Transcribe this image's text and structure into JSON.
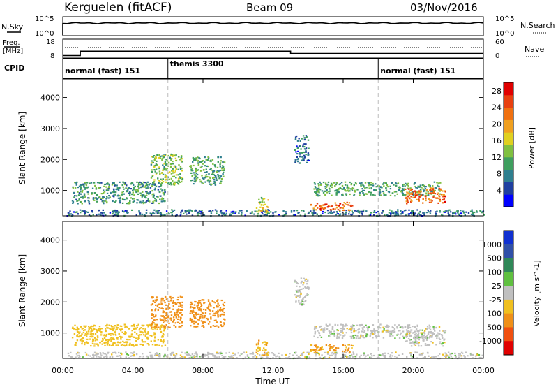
{
  "header": {
    "station": "Kerguelen (fitACF)",
    "beam": "Beam 09",
    "date": "03/Nov/2016"
  },
  "time_axis": {
    "label": "Time UT",
    "ticks": [
      "00:00",
      "04:00",
      "08:00",
      "12:00",
      "16:00",
      "20:00",
      "00:00"
    ],
    "hours": [
      0,
      4,
      8,
      12,
      16,
      20,
      24
    ]
  },
  "params": {
    "nsky_label": "N.Sky",
    "nsky_ticks": [
      "10^5",
      "10^0"
    ],
    "nsearch_label": "N.Search",
    "nsearch_ticks": [
      "10^5",
      "10^0"
    ],
    "freq_label_top": "Freq.",
    "freq_label_bottom": "[MHz]",
    "freq_ticks": [
      "18",
      "8"
    ],
    "nave_label": "Nave",
    "nave_ticks": [
      "60",
      "0"
    ],
    "cpid_label": "CPID",
    "cpid_segments": [
      {
        "start_hour": 0,
        "end_hour": 6,
        "label": "normal (fast) 151"
      },
      {
        "start_hour": 6,
        "end_hour": 18,
        "label": "themis 3300"
      },
      {
        "start_hour": 18,
        "end_hour": 24,
        "label": "normal (fast) 151"
      }
    ],
    "freq_steps": [
      {
        "start_hour": 0,
        "end_hour": 1,
        "mhz": 9.0
      },
      {
        "start_hour": 1,
        "end_hour": 13,
        "mhz": 11.5
      },
      {
        "start_hour": 13,
        "end_hour": 24,
        "mhz": 10.2
      }
    ]
  },
  "power_panel": {
    "ylabel": "Slant Range [km]",
    "yticks": [
      "4000",
      "3000",
      "2000",
      "1000"
    ],
    "colorbar_label": "Power [dB]",
    "colorbar_ticks": [
      "28",
      "24",
      "20",
      "16",
      "12",
      "8",
      "4"
    ],
    "colors": [
      "#0000ff",
      "#1f3fa0",
      "#2f7f8f",
      "#3f9f5f",
      "#80c040",
      "#e0d020",
      "#f0a020",
      "#f07010",
      "#e84010",
      "#e00000"
    ]
  },
  "velocity_panel": {
    "ylabel": "Slant Range [km]",
    "yticks": [
      "4000",
      "3000",
      "2000",
      "1000"
    ],
    "colorbar_label": "Velocity [m s^-1]",
    "colorbar_ticks": [
      "1000",
      "500",
      "100",
      "25",
      "-25",
      "-100",
      "-500",
      "-1000"
    ],
    "colors": [
      "#1030d0",
      "#3050a8",
      "#308858",
      "#60c040",
      "#c0c0c0",
      "#f0c020",
      "#f09018",
      "#f05010",
      "#e00000"
    ]
  },
  "chart_data": {
    "type": "heatmap",
    "x_unit": "hours UT",
    "xlim": [
      0,
      24
    ],
    "y_unit": "km",
    "ylim": [
      180,
      4600
    ],
    "echo_regions": [
      {
        "t0": 0.2,
        "t1": 24,
        "r0": 200,
        "r1": 400,
        "power_db": 6,
        "velocity": 0
      },
      {
        "t0": 0.5,
        "t1": 5.8,
        "r0": 600,
        "r1": 1300,
        "power_db": 9,
        "velocity": -60
      },
      {
        "t0": 5.0,
        "t1": 6.8,
        "r0": 1200,
        "r1": 2200,
        "power_db": 13,
        "velocity": -250
      },
      {
        "t0": 7.2,
        "t1": 9.2,
        "r0": 1200,
        "r1": 2100,
        "power_db": 10,
        "velocity": -150
      },
      {
        "t0": 11.0,
        "t1": 11.7,
        "r0": 300,
        "r1": 800,
        "power_db": 16,
        "velocity": -80
      },
      {
        "t0": 13.2,
        "t1": 14.0,
        "r0": 1900,
        "r1": 2800,
        "power_db": 6,
        "velocity": 0
      },
      {
        "t0": 14.1,
        "t1": 16.5,
        "r0": 380,
        "r1": 650,
        "power_db": 24,
        "velocity": -110
      },
      {
        "t0": 14.3,
        "t1": 21.5,
        "r0": 850,
        "r1": 1300,
        "power_db": 10,
        "velocity": 0
      },
      {
        "t0": 19.5,
        "t1": 21.8,
        "r0": 600,
        "r1": 1100,
        "power_db": 24,
        "velocity": 0
      }
    ]
  }
}
